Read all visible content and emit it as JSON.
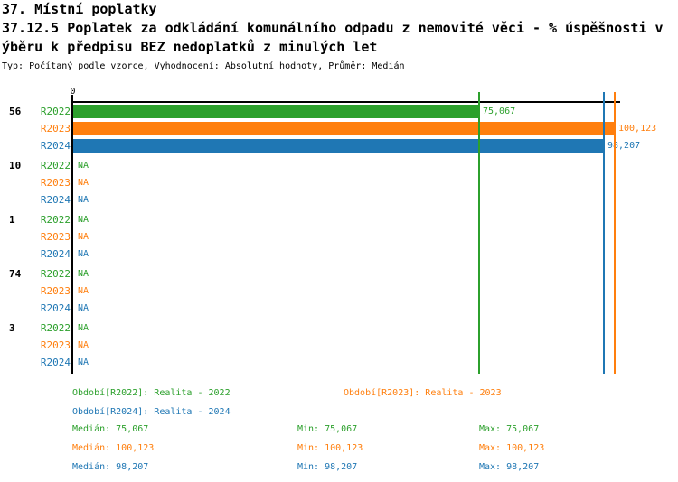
{
  "header": {
    "title_line1": "37. Místní poplatky",
    "title_line2": "37.12.5 Poplatek za odkládání komunálního odpadu z nemovité věci - % úspěšnosti v",
    "title_line3": "ýběru k předpisu BEZ nedoplatků z minulých let",
    "meta": "Typ: Počítaný podle vzorce, Vyhodnocení: Absolutní hodnoty, Průměr: Medián"
  },
  "colors": {
    "R2022": "#2ca02c",
    "R2023": "#ff7f0e",
    "R2024": "#1f77b4",
    "axis": "#000000"
  },
  "chart_data": {
    "type": "bar",
    "orientation": "horizontal",
    "zero_tick_label": "0",
    "xlim": [
      0,
      101.4
    ],
    "grid": false,
    "na_text": "NA",
    "series_names": [
      "R2022",
      "R2023",
      "R2024"
    ],
    "categories": [
      "56",
      "10",
      "1",
      "74",
      "3"
    ],
    "groups": [
      {
        "label": "56",
        "rows": [
          {
            "series": "R2022",
            "value": 75.067,
            "value_label": "75,067"
          },
          {
            "series": "R2023",
            "value": 100.123,
            "value_label": "100,123"
          },
          {
            "series": "R2024",
            "value": 98.207,
            "value_label": "98,207"
          }
        ]
      },
      {
        "label": "10",
        "rows": [
          {
            "series": "R2022",
            "value": null,
            "value_label": "NA"
          },
          {
            "series": "R2023",
            "value": null,
            "value_label": "NA"
          },
          {
            "series": "R2024",
            "value": null,
            "value_label": "NA"
          }
        ]
      },
      {
        "label": "1",
        "rows": [
          {
            "series": "R2022",
            "value": null,
            "value_label": "NA"
          },
          {
            "series": "R2023",
            "value": null,
            "value_label": "NA"
          },
          {
            "series": "R2024",
            "value": null,
            "value_label": "NA"
          }
        ]
      },
      {
        "label": "74",
        "rows": [
          {
            "series": "R2022",
            "value": null,
            "value_label": "NA"
          },
          {
            "series": "R2023",
            "value": null,
            "value_label": "NA"
          },
          {
            "series": "R2024",
            "value": null,
            "value_label": "NA"
          }
        ]
      },
      {
        "label": "3",
        "rows": [
          {
            "series": "R2022",
            "value": null,
            "value_label": "NA"
          },
          {
            "series": "R2023",
            "value": null,
            "value_label": "NA"
          },
          {
            "series": "R2024",
            "value": null,
            "value_label": "NA"
          }
        ]
      }
    ],
    "reference_lines": [
      {
        "series": "R2022",
        "value": 75.067
      },
      {
        "series": "R2024",
        "value": 98.207
      },
      {
        "series": "R2023",
        "value": 100.123
      }
    ]
  },
  "legend": {
    "item_r2022": "Období[R2022]: Realita - 2022",
    "item_r2023": "Období[R2023]: Realita - 2023",
    "item_r2024": "Období[R2024]: Realita - 2024"
  },
  "stats": {
    "rows": [
      {
        "series": "R2022",
        "median": "Medián: 75,067",
        "min": "Min: 75,067",
        "max": "Max: 75,067"
      },
      {
        "series": "R2023",
        "median": "Medián: 100,123",
        "min": "Min: 100,123",
        "max": "Max: 100,123"
      },
      {
        "series": "R2024",
        "median": "Medián: 98,207",
        "min": "Min: 98,207",
        "max": "Max: 98,207"
      }
    ]
  }
}
